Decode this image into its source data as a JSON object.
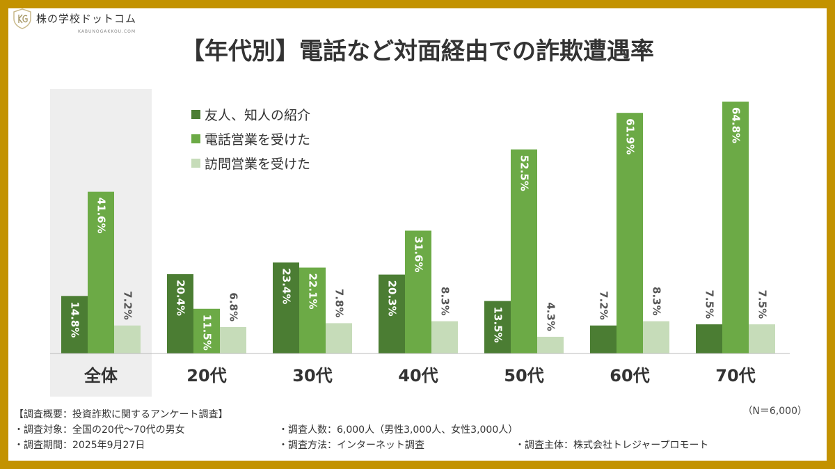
{
  "logo": {
    "name": "株の学校ドットコム",
    "sub": "KABUNOGAKKOU.COM",
    "mark": "KG"
  },
  "chart_data": {
    "type": "bar",
    "title": "【年代別】電話など対面経由での詐欺遭遇率",
    "categories": [
      "全体",
      "20代",
      "30代",
      "40代",
      "50代",
      "60代",
      "70代"
    ],
    "series": [
      {
        "name": "友人、知人の紹介",
        "color": "#4b7d33",
        "values": [
          14.8,
          20.4,
          23.4,
          20.3,
          13.5,
          7.2,
          7.5
        ]
      },
      {
        "name": "電話営業を受けた",
        "color": "#6caa46",
        "values": [
          41.6,
          11.5,
          22.1,
          31.6,
          52.5,
          61.9,
          64.8
        ]
      },
      {
        "name": "訪問営業を受けた",
        "color": "#c6dcb9",
        "values": [
          7.2,
          6.8,
          7.8,
          8.3,
          4.3,
          8.3,
          7.5
        ]
      }
    ],
    "unit": "%",
    "ylim": [
      0,
      70
    ],
    "legend": "top-left",
    "highlight_category": "全体",
    "grid": false
  },
  "note_n": "（N＝6,000）",
  "footer": {
    "heading": "【調査概要：投資詐欺に関するアンケート調査】",
    "rows": [
      [
        "・調査対象：全国の20代～70代の男女",
        "・調査人数：6,000人（男性3,000人、女性3,000人）",
        ""
      ],
      [
        "・調査期間：2025年9月27日",
        "・調査方法：インターネット調査",
        "・調査主体：株式会社トレジャープロモート"
      ]
    ]
  }
}
